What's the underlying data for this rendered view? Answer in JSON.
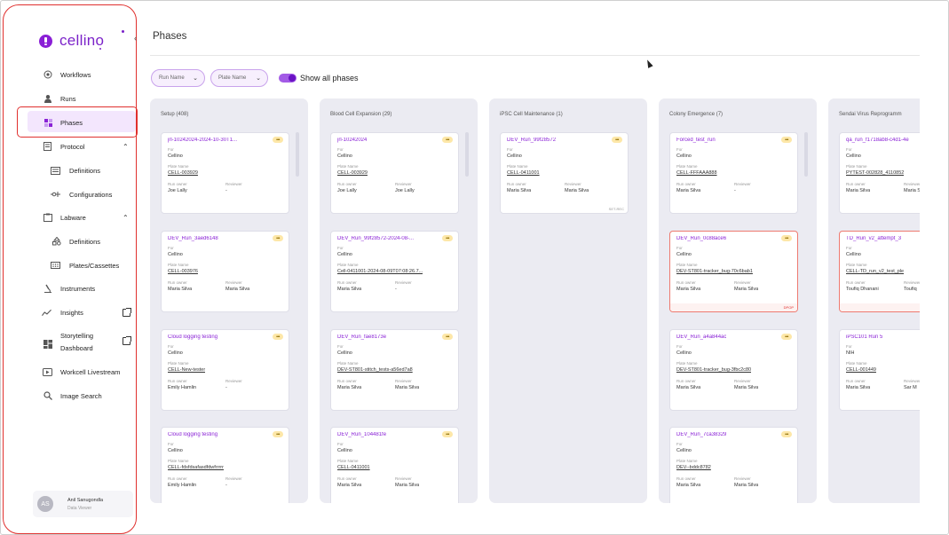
{
  "app": {
    "logo_text": "cellino",
    "page_title": "Phases",
    "accent": "#8a22d6",
    "error_color": "#e0302e"
  },
  "sidebar": {
    "collapse_icon": "chevron-left-icon",
    "items": [
      {
        "label": "Workflows",
        "icon": "workflow-icon"
      },
      {
        "label": "Runs",
        "icon": "user-icon"
      },
      {
        "label": "Phases",
        "icon": "grid-icon",
        "active": true
      },
      {
        "label": "Protocol",
        "icon": "doc-icon",
        "expanded": true
      },
      {
        "label": "Definitions",
        "icon": "list-icon"
      },
      {
        "label": "Configurations",
        "icon": "config-icon"
      },
      {
        "label": "Labware",
        "icon": "clipboard-icon",
        "expanded": true
      },
      {
        "label": "Definitions",
        "icon": "shapes-icon"
      },
      {
        "label": "Plates/Cassettes",
        "icon": "plate-icon"
      },
      {
        "label": "Instruments",
        "icon": "microscope-icon"
      },
      {
        "label": "Insights",
        "icon": "chart-icon",
        "external": true
      },
      {
        "label": "Storytelling",
        "label2": "Dashboard",
        "icon": "dashboard-icon",
        "external": true
      },
      {
        "label": "Workcell Livestream",
        "icon": "play-icon"
      },
      {
        "label": "Image Search",
        "icon": "search-icon"
      }
    ],
    "user": {
      "initials": "AS",
      "name": "Anil Sanugondla",
      "role": "Data Viewer"
    }
  },
  "filters": {
    "run_name": "Run Name",
    "plate_name": "Plate Name",
    "show_all_label": "Show all phases",
    "show_all_on": true
  },
  "labels": {
    "for": "For",
    "plate_name": "Plate Name",
    "run_owner": "Run owner",
    "reviewer": "Reviewer",
    "more": "•••"
  },
  "columns": [
    {
      "title": "Setup (408)",
      "cards": [
        {
          "name": "jrl-10242024-2024-10-30T1...",
          "for": "Cellino",
          "plate": "CELL-003929",
          "owner": "Joe Lally",
          "reviewer": "-"
        },
        {
          "name": "DEV_Run_3aed6148",
          "for": "Cellino",
          "plate": "CELL-003976",
          "owner": "Maria Silva",
          "reviewer": "Maria Silva"
        },
        {
          "name": "Cloud logging testing",
          "for": "Cellino",
          "plate": "CELL-New-tester",
          "owner": "Emily Hamlin",
          "reviewer": "-"
        },
        {
          "name": "Cloud logging testing",
          "for": "Cellino",
          "plate": "CELL-fdsfdsafasdfdwfrrrrr",
          "owner": "Emily Hamlin",
          "reviewer": "-"
        }
      ]
    },
    {
      "title": "Blood Cell Expansion (29)",
      "cards": [
        {
          "name": "jrl-10242024",
          "for": "Cellino",
          "plate": "CELL-003929",
          "owner": "Joe Lally",
          "reviewer": "Joe Lally"
        },
        {
          "name": "DEV_Run_99f28572-2024-08-...",
          "for": "Cellino",
          "plate": "Cell-0411001-2024-08-09T07:08:26.7...",
          "owner": "Maria Silva",
          "reviewer": "-"
        },
        {
          "name": "DEV_Run_fae8173e",
          "for": "Cellino",
          "plate": "DEV-ST801-stitch_tests-a56ed7a8",
          "owner": "Maria Silva",
          "reviewer": "Maria Silva"
        },
        {
          "name": "DEV_Run_104481fe",
          "for": "Cellino",
          "plate": "CELL-0411001",
          "owner": "Maria Silva",
          "reviewer": "Maria Silva"
        }
      ]
    },
    {
      "title": "iPSC Cell Maintenance (1)",
      "cards": [
        {
          "name": "DEV_Run_99f28572",
          "for": "Cellino",
          "plate": "CELL-0411001",
          "owner": "Maria Silva",
          "reviewer": "Maria Silva",
          "status": "SET-REC"
        }
      ]
    },
    {
      "title": "Colony Emergence (7)",
      "cards": [
        {
          "name": "Forced_test_run",
          "for": "Cellino",
          "plate": "CELL-FFFAAA888",
          "owner": "Maria Silva",
          "reviewer": "-"
        },
        {
          "name": "DEV_Run_0c88ace6",
          "for": "Cellino",
          "plate": "DEV-ST801-tracker_bug-70c6bab1",
          "owner": "Maria Silva",
          "reviewer": "Maria Silva",
          "status": "DPOP",
          "error": true
        },
        {
          "name": "DEV_Run_a4a844ac",
          "for": "Cellino",
          "plate": "DEV-ST801-tracker_bug-3fbc2c80",
          "owner": "Maria Silva",
          "reviewer": "Maria Silva"
        },
        {
          "name": "DEV_Run_7ca38329",
          "for": "Cellino",
          "plate": "DEV--bddc8782",
          "owner": "Maria Silva",
          "reviewer": "Maria Silva"
        }
      ]
    },
    {
      "title": "Sendai Virus Reprogramm",
      "cards": [
        {
          "name": "qa_run_f1718ab8-c4d1-4e",
          "for": "Cellino",
          "plate": "PYTEST-002828_4110852",
          "owner": "Maria Silva",
          "reviewer": "Maria Silva"
        },
        {
          "name": "TD_Run_v2_attempt_3",
          "for": "Cellino",
          "plate": "CELL-TD_run_v2_test_ple",
          "owner": "Toufiq Dhanani",
          "reviewer": "Toufiq",
          "error": true
        },
        {
          "name": "iPSC101 Run 5",
          "for": "NIH",
          "plate": "CELL-001449",
          "owner": "Maria Silva",
          "reviewer": "Sar M"
        }
      ]
    }
  ]
}
